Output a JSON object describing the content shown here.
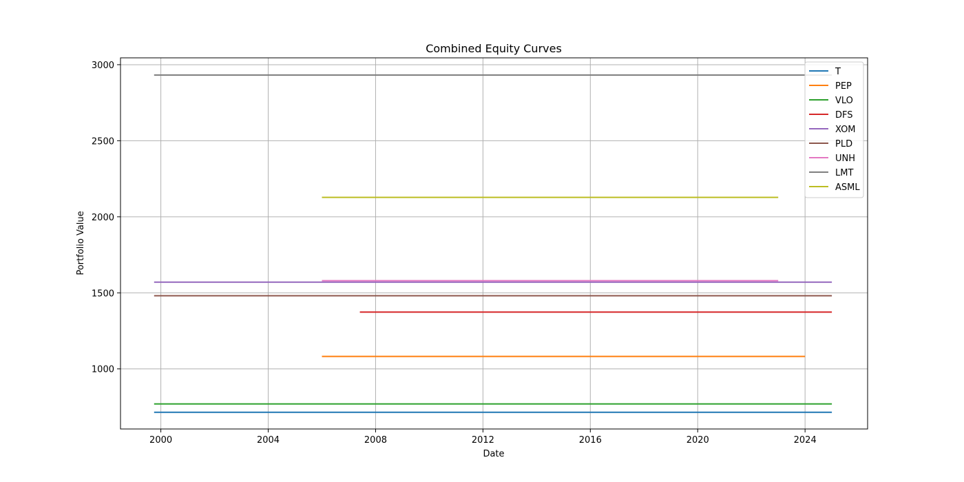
{
  "chart_data": {
    "type": "line",
    "title": "Combined Equity Curves",
    "xlabel": "Date",
    "ylabel": "Portfolio Value",
    "xlim": [
      "1998-07-01",
      "2026-05-01"
    ],
    "ylim": [
      605,
      3045
    ],
    "x_ticks": [
      "2000",
      "2004",
      "2008",
      "2012",
      "2016",
      "2020",
      "2024"
    ],
    "y_ticks": [
      1000,
      1500,
      2000,
      2500,
      3000
    ],
    "grid": true,
    "legend_position": "upper right",
    "series": [
      {
        "name": "T",
        "color": "#1f77b4",
        "x": [
          "1999-10-01",
          "2024-12-31"
        ],
        "values": [
          715,
          715
        ]
      },
      {
        "name": "PEP",
        "color": "#ff7f0e",
        "x": [
          "2006-01-01",
          "2024-01-01"
        ],
        "values": [
          1082,
          1082
        ]
      },
      {
        "name": "VLO",
        "color": "#2ca02c",
        "x": [
          "1999-10-01",
          "2024-12-31"
        ],
        "values": [
          770,
          770
        ]
      },
      {
        "name": "DFS",
        "color": "#d62728",
        "x": [
          "2007-06-01",
          "2024-12-31"
        ],
        "values": [
          1373,
          1373
        ]
      },
      {
        "name": "XOM",
        "color": "#9467bd",
        "x": [
          "1999-10-01",
          "2024-12-31"
        ],
        "values": [
          1570,
          1570
        ]
      },
      {
        "name": "PLD",
        "color": "#8c564b",
        "x": [
          "1999-10-01",
          "2024-12-31"
        ],
        "values": [
          1481,
          1481
        ]
      },
      {
        "name": "UNH",
        "color": "#e377c2",
        "x": [
          "2006-01-01",
          "2023-01-01"
        ],
        "values": [
          1580,
          1580
        ]
      },
      {
        "name": "LMT",
        "color": "#7f7f7f",
        "x": [
          "1999-10-01",
          "2024-12-31"
        ],
        "values": [
          2932,
          2932
        ]
      },
      {
        "name": "ASML",
        "color": "#bcbd22",
        "x": [
          "2006-01-01",
          "2023-01-01"
        ],
        "values": [
          2128,
          2128
        ]
      }
    ]
  }
}
